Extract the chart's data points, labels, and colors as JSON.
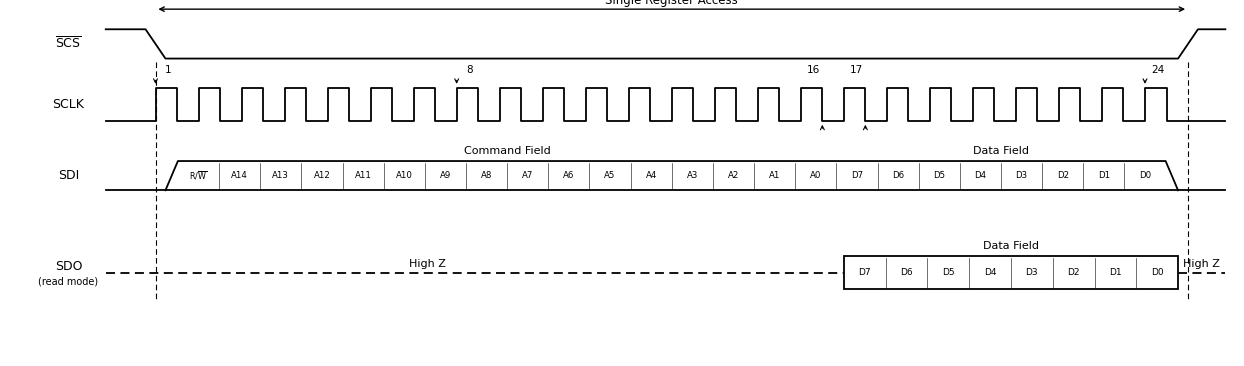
{
  "title": "Single Register Access",
  "scs_label": "SCS",
  "sclk_label": "SCLK",
  "sdi_label": "SDI",
  "sdo_label": "SDO",
  "sdo_label2": "(read mode)",
  "num_clocks": 24,
  "clock_labels": [
    1,
    8,
    16,
    17,
    24
  ],
  "sdi_bits_cmd": [
    "R/W",
    "A14",
    "A13",
    "A12",
    "A11",
    "A10",
    "A9",
    "A8",
    "A7",
    "A6",
    "A5",
    "A4",
    "A3",
    "A2",
    "A1",
    "A0"
  ],
  "sdi_bits_data": [
    "D7",
    "D6",
    "D5",
    "D4",
    "D3",
    "D2",
    "D1",
    "D0"
  ],
  "sdo_bits_data": [
    "D7",
    "D6",
    "D5",
    "D4",
    "D3",
    "D2",
    "D1",
    "D0"
  ],
  "cmd_field_label": "Command Field",
  "data_field_label_sdi": "Data Field",
  "data_field_label_sdo": "Data Field",
  "high_z_label": "High Z",
  "high_z_label_right": "High Z",
  "bg_color": "#ffffff",
  "line_color": "#000000",
  "figsize": [
    12.44,
    3.66
  ],
  "dpi": 100
}
